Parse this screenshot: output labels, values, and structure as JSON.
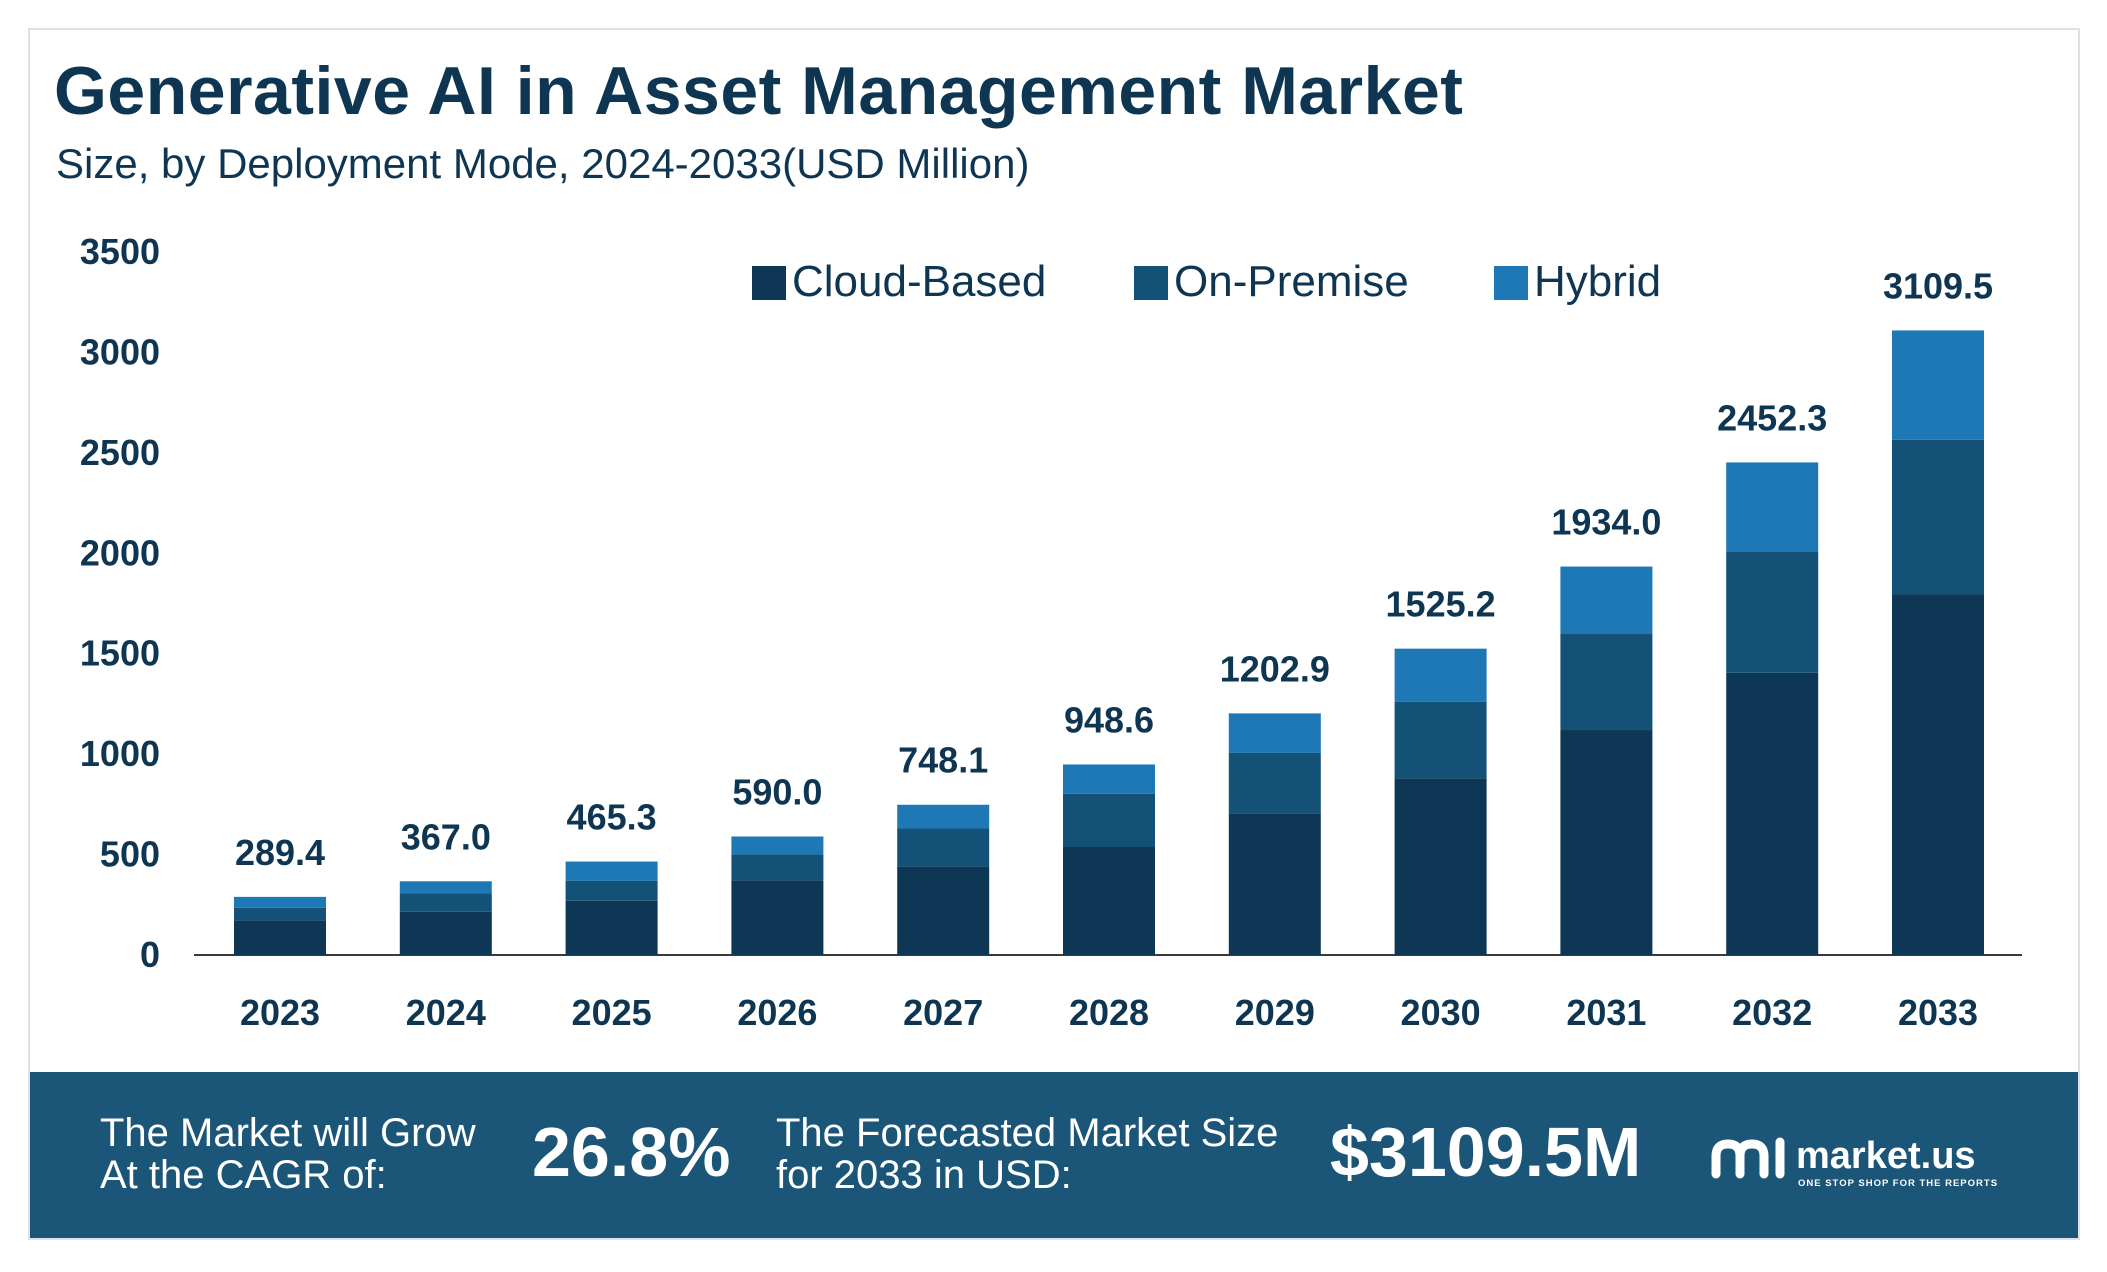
{
  "title": "Generative AI in Asset Management Market",
  "subtitle": "Size, by Deployment Mode, 2024-2033(USD Million)",
  "colors": {
    "cloud": "#0d3755",
    "onprem": "#135276",
    "hybrid": "#1d78b5",
    "footer": "#1b5577",
    "text": "#0e3652"
  },
  "chart_data": {
    "type": "bar",
    "stacked": true,
    "categories": [
      "2023",
      "2024",
      "2025",
      "2026",
      "2027",
      "2028",
      "2029",
      "2030",
      "2031",
      "2032",
      "2033"
    ],
    "series": [
      {
        "name": "Cloud-Based",
        "values": [
          173,
          215,
          270,
          372,
          440,
          540,
          706,
          880,
          1120,
          1405,
          1795
        ]
      },
      {
        "name": "On-Premise",
        "values": [
          62,
          93,
          100,
          128,
          190,
          262,
          300,
          380,
          478,
          605,
          770
        ]
      },
      {
        "name": "Hybrid",
        "values": [
          54.4,
          59.0,
          95.3,
          90.0,
          118.1,
          146.6,
          196.9,
          265.2,
          336.0,
          442.3,
          544.5
        ]
      }
    ],
    "totals": [
      289.4,
      367.0,
      465.3,
      590.0,
      748.1,
      948.6,
      1202.9,
      1525.2,
      1934.0,
      2452.3,
      3109.5
    ],
    "total_labels": [
      "289.4",
      "367.0",
      "465.3",
      "590.0",
      "748.1",
      "948.6",
      "1202.9",
      "1525.2",
      "1934.0",
      "2452.3",
      "3109.5"
    ],
    "y_ticks": [
      "0",
      "500",
      "1000",
      "1500",
      "2000",
      "2500",
      "3000",
      "3500"
    ],
    "ylim": [
      0,
      3500
    ],
    "grid": false,
    "legend_position": "top-center"
  },
  "footer": {
    "cagr_label_line1": "The Market will Grow",
    "cagr_label_line2": "At the CAGR of:",
    "cagr_value": "26.8%",
    "forecast_label_line1": "The Forecasted Market Size",
    "forecast_label_line2": "for 2033 in USD:",
    "forecast_value": "$3109.5M"
  },
  "logo": {
    "name": "market.us",
    "tagline": "ONE STOP SHOP FOR THE REPORTS",
    "icon": "market-us-logo-icon"
  }
}
